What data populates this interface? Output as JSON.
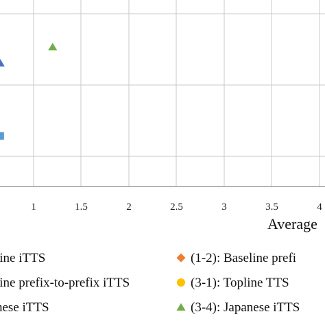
{
  "chart_data": {
    "type": "scatter",
    "xlabel": "Average",
    "x_ticks": [
      "1",
      "1.5",
      "2",
      "2.5",
      "3",
      "3.5",
      "4"
    ],
    "grid": true,
    "series": [
      {
        "name": "line iTTS",
        "marker": "square",
        "color": "#5b9bd5",
        "x": [
          0.65
        ],
        "y": [
          2.5
        ]
      },
      {
        "name": "(1-2): Baseline prefi",
        "marker": "diamond",
        "color": "#ed7d31",
        "x": [],
        "y": []
      },
      {
        "name": "line prefix-to-prefix iTTS",
        "marker": "triangle",
        "color": "#4472c4",
        "x": [
          0.65
        ],
        "y": [
          6.1
        ]
      },
      {
        "name": "(3-1): Topline TTS",
        "marker": "circle",
        "color": "#ffc000",
        "x": [],
        "y": []
      },
      {
        "name": "nese iTTS",
        "marker": "none",
        "color": "#000000",
        "x": [],
        "y": []
      },
      {
        "name": "(3-4): Japanese iTTS",
        "marker": "triangle",
        "color": "#70ad47",
        "x": [
          1.2
        ],
        "y": [
          6.9
        ]
      }
    ]
  },
  "colors": {
    "grid": "#c8c8c8",
    "axis": "#888888"
  }
}
